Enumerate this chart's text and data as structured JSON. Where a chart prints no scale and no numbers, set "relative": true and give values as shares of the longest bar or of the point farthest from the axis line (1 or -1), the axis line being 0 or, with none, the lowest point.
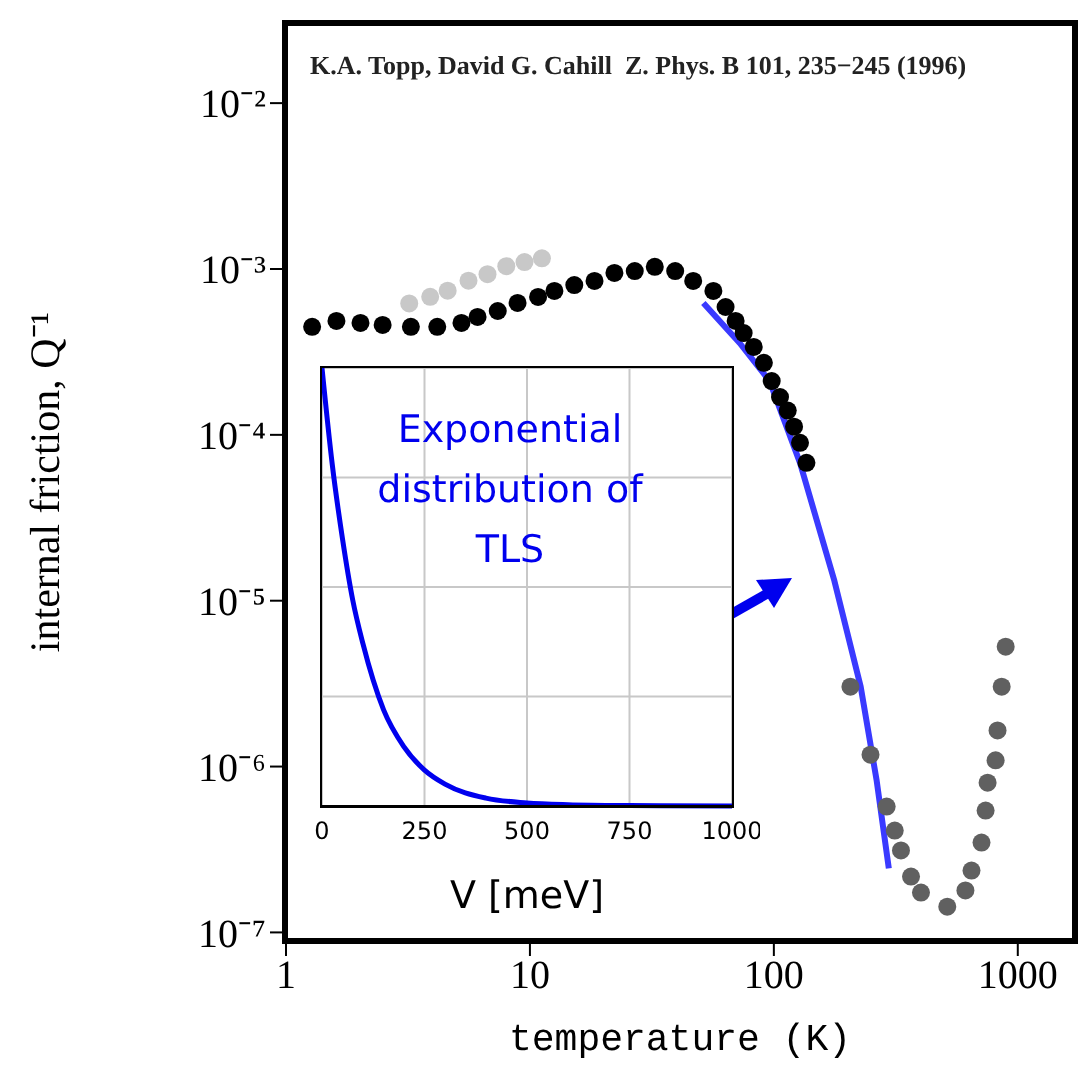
{
  "chart_data": [
    {
      "type": "scatter",
      "annotations": [
        "K.A. Topp, David G. Cahill  Z. Phys. B 101, 235−245 (1996)"
      ],
      "xlabel": "temperature (K)",
      "ylabel": "internal friction, Q⁻¹",
      "xlim": [
        1,
        1700
      ],
      "xticks": [
        1,
        10,
        100,
        1000
      ],
      "ylim": [
        9e-08,
        0.03
      ],
      "yticks": [
        {
          "value": 1e-07,
          "label": "10⁻⁷"
        },
        {
          "value": 1e-06,
          "label": "10⁻⁶"
        },
        {
          "value": 1e-05,
          "label": "10⁻⁵"
        },
        {
          "value": 0.0001,
          "label": "10⁻⁴"
        },
        {
          "value": 0.001,
          "label": "10⁻³"
        },
        {
          "value": 0.01,
          "label": "10⁻²"
        }
      ],
      "log": "xy",
      "grid": false,
      "marker": "circle",
      "series": [
        {
          "color": "#c8c8c8",
          "x": [
            3.2,
            3.9,
            4.6,
            5.6,
            6.7,
            8.0,
            9.5,
            11.2
          ],
          "values": [
            0.00062,
            0.00068,
            0.00074,
            0.00085,
            0.00093,
            0.00104,
            0.0011,
            0.00116
          ]
        },
        {
          "color": "#000000",
          "x": [
            1.28,
            1.61,
            2.02,
            2.49,
            3.25,
            4.17,
            5.24,
            6.1,
            7.38,
            8.9,
            10.8,
            12.6,
            15.2,
            18.4,
            22.2,
            26.9,
            32.5,
            39.4,
            46.7,
            56.5,
            63.4,
            69.7,
            75.2,
            82.7,
            91,
            98,
            106,
            114,
            121,
            128,
            136
          ],
          "values": [
            0.000448,
            0.000486,
            0.000473,
            0.00046,
            0.000448,
            0.000448,
            0.000473,
            0.000514,
            0.000558,
            0.000624,
            0.000678,
            0.000737,
            0.0008,
            0.000847,
            0.000946,
            0.000972,
            0.00103,
            0.000972,
            0.000847,
            0.000737,
            0.00059,
            0.000486,
            0.000411,
            0.000339,
            0.000272,
            0.000211,
            0.000169,
            0.00014,
            0.000112,
            8.95e-05,
            6.78e-05
          ]
        },
        {
          "color": "#606060",
          "x": [
            206,
            249,
            290,
            313,
            332,
            365,
            401,
            514,
            610,
            646,
            710,
            738,
            752,
            811,
            826,
            859,
            892
          ],
          "values": [
            3.03e-06,
            1.18e-06,
            5.74e-07,
            4.11e-07,
            3.12e-07,
            2.17e-07,
            1.74e-07,
            1.43e-07,
            1.79e-07,
            2.36e-07,
            3.48e-07,
            5.43e-07,
            8e-07,
            1.09e-06,
            1.65e-06,
            3.03e-06,
            5.28e-06
          ]
        },
        {
          "type": "line",
          "color": "#3a3aff",
          "marker": "none",
          "x": [
            51.4,
            72.4,
            96,
            128,
            177,
            227,
            264,
            296
          ],
          "values": [
            0.000624,
            0.000358,
            0.000211,
            6.78e-05,
            1.32e-05,
            3.03e-06,
            8.2e-07,
            2.43e-07
          ]
        }
      ]
    },
    {
      "type": "line",
      "annotations": [
        "Exponential distribution of TLS"
      ],
      "xlabel": "V  [meV]",
      "xlim": [
        0,
        1000
      ],
      "xticks": [
        0,
        250,
        500,
        750,
        1000
      ],
      "relative": true,
      "grid": true,
      "marker": "none",
      "color": "#0000ee",
      "x": [
        0,
        25,
        50,
        75,
        100,
        150,
        200,
        250,
        300,
        400,
        500,
        600,
        750,
        1000
      ],
      "values": [
        1,
        0.78,
        0.61,
        0.47,
        0.37,
        0.22,
        0.135,
        0.082,
        0.05,
        0.018,
        0.007,
        0.003,
        0.001,
        0
      ]
    }
  ]
}
